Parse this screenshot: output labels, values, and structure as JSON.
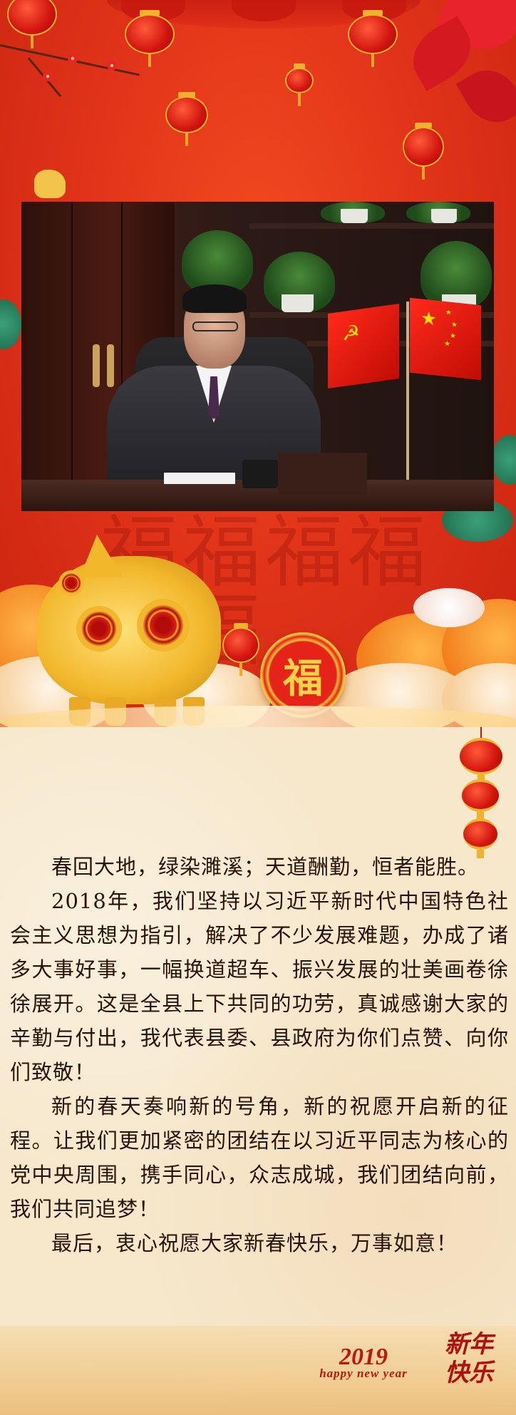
{
  "header": {
    "photo_alt": "",
    "seal_char": "福",
    "background_chars": "福福福福福福"
  },
  "letter": {
    "paragraphs": [
      "春回大地，绿染濉溪；天道酬勤，恒者能胜。",
      "2018年，我们坚持以习近平新时代中国特色社会主义思想为指引，解决了不少发展难题，办成了诸多大事好事，一幅换道超车、振兴发展的壮美画卷徐徐展开。这是全县上下共同的功劳，真诚感谢大家的辛勤与付出，我代表县委、县政府为你们点赞、向你们致敬！",
      "新的春天奏响新的号角，新的祝愿开启新的征程。让我们更加紧密的团结在以习近平同志为核心的党中央周围，携手同心，众志成城，我们团结向前，我们共同追梦！",
      "最后，衷心祝愿大家新春快乐，万事如意！"
    ]
  },
  "footer": {
    "year": "2019",
    "year_sub": "happy new year",
    "greeting": "新年快乐"
  },
  "colors": {
    "banner_red": "#e2341a",
    "gold": "#f2b72b",
    "cream": "#f7e8cc",
    "text": "#2a1208",
    "accent_red": "#c4150c"
  },
  "icons": [
    "lantern-icon",
    "plum-blossom-icon",
    "golden-pig-icon",
    "fu-seal-icon",
    "cloud-icon",
    "flag-icon"
  ]
}
